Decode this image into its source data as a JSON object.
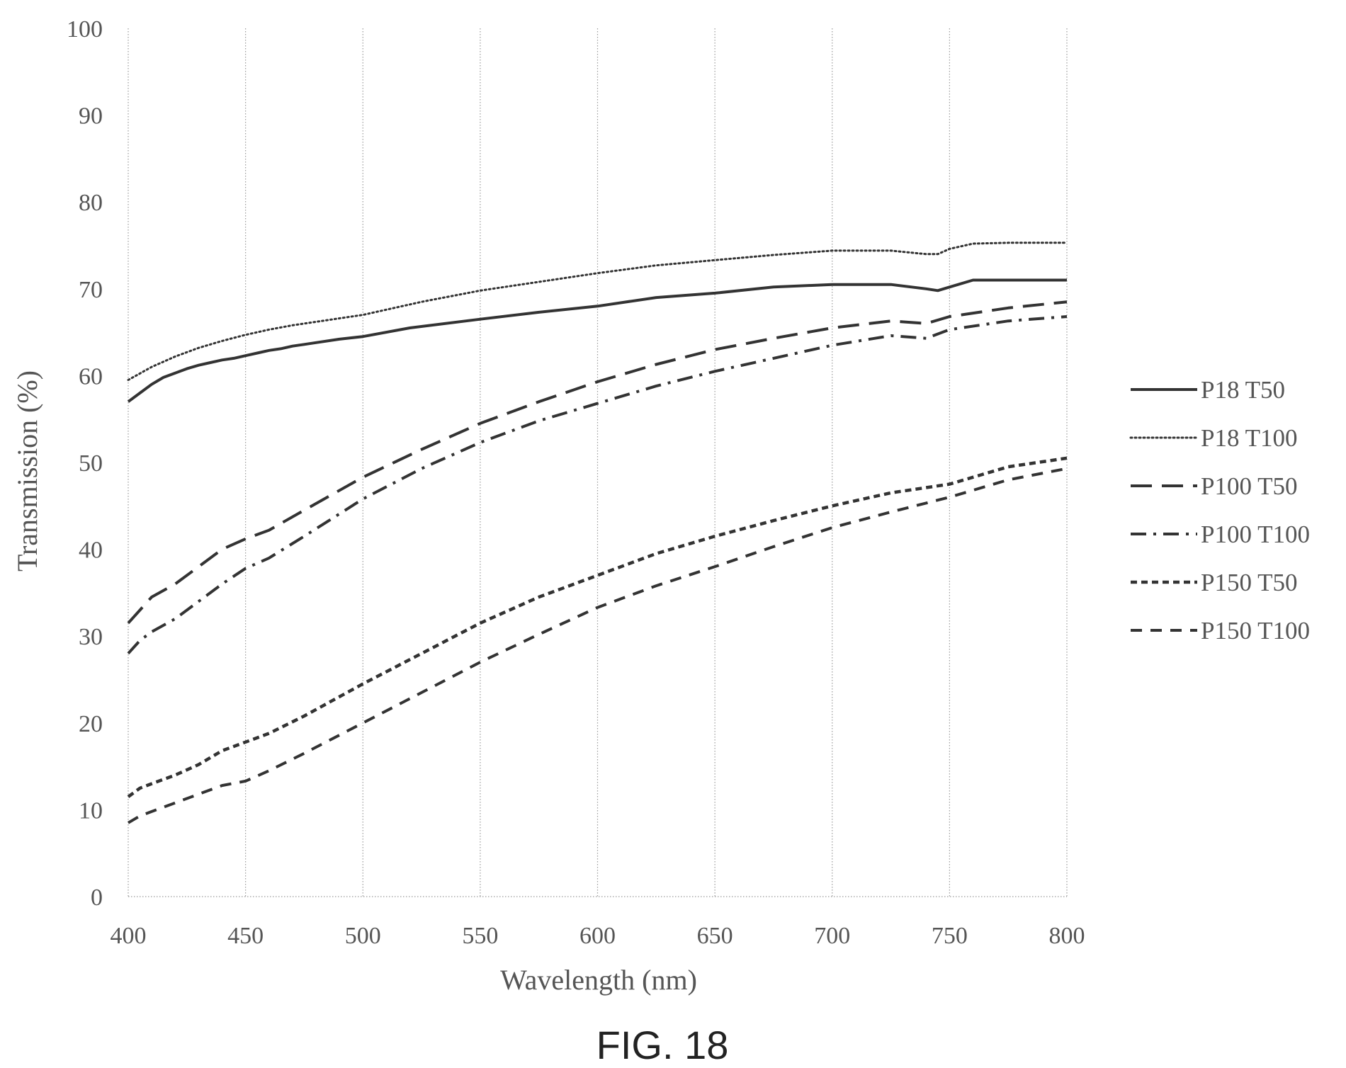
{
  "chart_data": {
    "type": "line",
    "title": "",
    "xlabel": "Wavelength (nm)",
    "ylabel": "Transmission (%)",
    "xlim": [
      400,
      800
    ],
    "ylim": [
      0,
      100
    ],
    "x_ticks": [
      "400",
      "450",
      "500",
      "550",
      "600",
      "650",
      "700",
      "750",
      "800"
    ],
    "y_ticks": [
      "0",
      "10",
      "20",
      "30",
      "40",
      "50",
      "60",
      "70",
      "80",
      "90",
      "100"
    ],
    "grid": "vertical",
    "legend_position": "right",
    "series": [
      {
        "name": "P18 T50",
        "style": "solid",
        "x": [
          400,
          405,
          410,
          415,
          420,
          425,
          430,
          435,
          440,
          445,
          450,
          455,
          460,
          465,
          470,
          475,
          480,
          490,
          500,
          520,
          550,
          575,
          600,
          625,
          650,
          675,
          700,
          725,
          740,
          745,
          750,
          760,
          775,
          800
        ],
        "y": [
          57.0,
          58.0,
          59.0,
          59.8,
          60.3,
          60.8,
          61.2,
          61.5,
          61.8,
          62.0,
          62.3,
          62.6,
          62.9,
          63.1,
          63.4,
          63.6,
          63.8,
          64.2,
          64.5,
          65.5,
          66.5,
          67.3,
          68.0,
          69.0,
          69.5,
          70.2,
          70.5,
          70.5,
          70.0,
          69.8,
          70.2,
          71.0,
          71.0,
          71.0
        ]
      },
      {
        "name": "P18 T100",
        "style": "dotted",
        "x": [
          400,
          410,
          420,
          430,
          440,
          450,
          460,
          470,
          480,
          490,
          500,
          525,
          550,
          575,
          600,
          625,
          650,
          675,
          700,
          725,
          740,
          745,
          750,
          760,
          775,
          800
        ],
        "y": [
          59.5,
          61.0,
          62.2,
          63.2,
          64.0,
          64.7,
          65.3,
          65.8,
          66.2,
          66.6,
          67.0,
          68.5,
          69.8,
          70.8,
          71.8,
          72.7,
          73.3,
          73.9,
          74.4,
          74.4,
          74.0,
          74.0,
          74.6,
          75.2,
          75.3,
          75.3
        ]
      },
      {
        "name": "P100 T50",
        "style": "long-dash",
        "x": [
          400,
          405,
          410,
          420,
          430,
          440,
          450,
          460,
          475,
          500,
          525,
          550,
          575,
          600,
          625,
          650,
          675,
          700,
          725,
          740,
          750,
          775,
          800
        ],
        "y": [
          31.5,
          33.0,
          34.5,
          36.0,
          38.0,
          40.0,
          41.2,
          42.2,
          44.5,
          48.3,
          51.5,
          54.5,
          57.0,
          59.3,
          61.3,
          63.0,
          64.3,
          65.5,
          66.3,
          66.0,
          66.8,
          67.8,
          68.5
        ]
      },
      {
        "name": "P100 T100",
        "style": "dash-dot",
        "x": [
          400,
          405,
          410,
          420,
          430,
          440,
          450,
          460,
          475,
          500,
          525,
          550,
          575,
          600,
          625,
          650,
          675,
          700,
          725,
          740,
          750,
          775,
          800
        ],
        "y": [
          28.0,
          29.5,
          30.5,
          32.0,
          34.0,
          36.0,
          37.8,
          39.0,
          41.5,
          45.8,
          49.3,
          52.3,
          54.8,
          56.8,
          58.8,
          60.5,
          62.0,
          63.5,
          64.6,
          64.3,
          65.3,
          66.3,
          66.8
        ]
      },
      {
        "name": "P150 T50",
        "style": "short-dash",
        "x": [
          400,
          405,
          410,
          420,
          430,
          440,
          450,
          460,
          475,
          500,
          525,
          550,
          575,
          600,
          625,
          650,
          675,
          700,
          725,
          750,
          775,
          800
        ],
        "y": [
          11.5,
          12.5,
          13.0,
          14.0,
          15.2,
          16.8,
          17.8,
          18.8,
          20.8,
          24.5,
          28.0,
          31.5,
          34.5,
          37.0,
          39.5,
          41.5,
          43.3,
          45.0,
          46.5,
          47.5,
          49.5,
          50.5
        ]
      },
      {
        "name": "P150 T100",
        "style": "medium-dash",
        "x": [
          400,
          405,
          410,
          420,
          430,
          440,
          450,
          460,
          475,
          500,
          525,
          550,
          575,
          600,
          625,
          650,
          675,
          700,
          725,
          750,
          775,
          800
        ],
        "y": [
          8.5,
          9.3,
          9.8,
          10.8,
          11.8,
          12.8,
          13.3,
          14.5,
          16.5,
          20.0,
          23.5,
          27.0,
          30.2,
          33.3,
          35.8,
          38.0,
          40.3,
          42.5,
          44.3,
          46.0,
          48.0,
          49.3
        ]
      }
    ]
  },
  "caption": "FIG. 18"
}
